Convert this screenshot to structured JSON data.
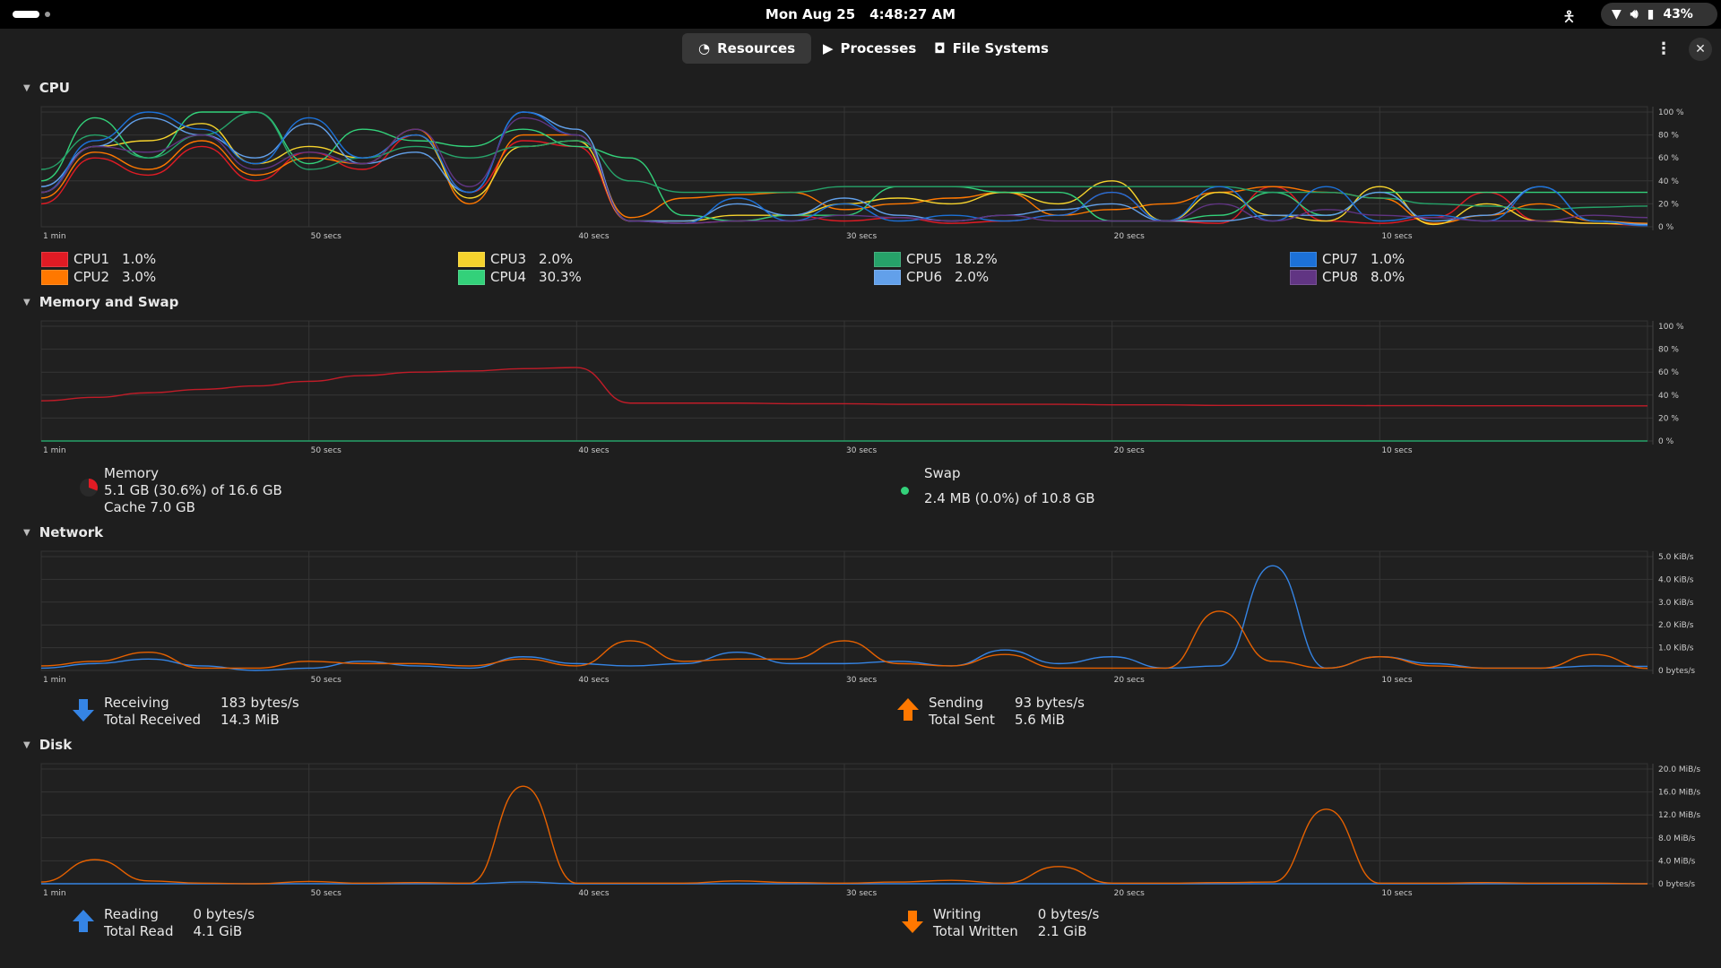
{
  "topbar": {
    "date": "Mon Aug 25",
    "time": "4:48:27 AM",
    "battery": "43%"
  },
  "tabs": [
    {
      "label": "Resources",
      "icon": "gauge-icon",
      "active": true
    },
    {
      "label": "Processes",
      "icon": "play-icon"
    },
    {
      "label": "File Systems",
      "icon": "disk-icon"
    }
  ],
  "x_labels": [
    "1 min",
    "50 secs",
    "40 secs",
    "30 secs",
    "20 secs",
    "10 secs"
  ],
  "x_label_secs": [
    60,
    50,
    40,
    30,
    20,
    10
  ],
  "sections": {
    "cpu": "CPU",
    "memory": "Memory and Swap",
    "network": "Network",
    "disk": "Disk"
  },
  "cpu_legend": [
    {
      "name": "CPU1",
      "value": "1.0%",
      "color": "#e01b24"
    },
    {
      "name": "CPU2",
      "value": "3.0%",
      "color": "#ff7800"
    },
    {
      "name": "CPU3",
      "value": "2.0%",
      "color": "#f6d32d"
    },
    {
      "name": "CPU4",
      "value": "30.3%",
      "color": "#33d17a"
    },
    {
      "name": "CPU5",
      "value": "18.2%",
      "color": "#26a269"
    },
    {
      "name": "CPU6",
      "value": "2.0%",
      "color": "#62a0ea"
    },
    {
      "name": "CPU7",
      "value": "1.0%",
      "color": "#1c71d8"
    },
    {
      "name": "CPU8",
      "value": "8.0%",
      "color": "#613583"
    }
  ],
  "memory": {
    "label": "Memory",
    "usage": "5.1 GB (30.6%) of 16.6 GB",
    "cache": "Cache 7.0 GB",
    "fraction": 0.306,
    "color": "#e01b24"
  },
  "swap": {
    "label": "Swap",
    "usage": "2.4 MB (0.0%) of 10.8 GB",
    "color": "#33d17a"
  },
  "network": {
    "receiving_label": "Receiving",
    "receiving": "183 bytes/s",
    "total_received_label": "Total Received",
    "total_received": "14.3 MiB",
    "sending_label": "Sending",
    "sending": "93 bytes/s",
    "total_sent_label": "Total Sent",
    "total_sent": "5.6 MiB"
  },
  "disk": {
    "reading_label": "Reading",
    "reading": "0 bytes/s",
    "total_read_label": "Total Read",
    "total_read": "4.1 GiB",
    "writing_label": "Writing",
    "writing": "0 bytes/s",
    "total_written_label": "Total Written",
    "total_written": "2.1 GiB"
  },
  "chart_data": [
    {
      "type": "line",
      "id": "cpu",
      "x_seconds_ago_step": 2,
      "ylim": [
        0,
        100
      ],
      "y_ticks": [
        "100 %",
        "80 %",
        "60 %",
        "40 %",
        "20 %",
        "0 %"
      ],
      "y_tick_values": [
        100,
        80,
        60,
        40,
        20,
        0
      ],
      "series": [
        {
          "name": "CPU1",
          "color": "#e01b24",
          "values": [
            20,
            60,
            45,
            70,
            40,
            65,
            50,
            80,
            30,
            75,
            70,
            5,
            3,
            5,
            10,
            5,
            8,
            3,
            5,
            10,
            30,
            5,
            3,
            35,
            5,
            3,
            8,
            30,
            5,
            3,
            1
          ]
        },
        {
          "name": "CPU2",
          "color": "#ff7800",
          "values": [
            25,
            65,
            50,
            75,
            45,
            60,
            55,
            85,
            20,
            80,
            80,
            8,
            25,
            28,
            30,
            15,
            20,
            25,
            30,
            10,
            15,
            20,
            30,
            35,
            30,
            25,
            3,
            10,
            20,
            5,
            3
          ]
        },
        {
          "name": "CPU3",
          "color": "#f6d32d",
          "values": [
            30,
            70,
            75,
            90,
            55,
            70,
            60,
            80,
            25,
            70,
            75,
            5,
            5,
            10,
            10,
            20,
            25,
            20,
            30,
            20,
            40,
            5,
            30,
            10,
            5,
            35,
            2,
            20,
            5,
            3,
            2
          ]
        },
        {
          "name": "CPU4",
          "color": "#33d17a",
          "values": [
            40,
            95,
            60,
            100,
            100,
            55,
            85,
            75,
            70,
            85,
            70,
            60,
            10,
            5,
            10,
            10,
            35,
            35,
            30,
            30,
            5,
            5,
            10,
            30,
            10,
            30,
            30,
            30,
            30,
            30,
            30
          ]
        },
        {
          "name": "CPU5",
          "color": "#26a269",
          "values": [
            50,
            80,
            60,
            80,
            100,
            50,
            60,
            70,
            60,
            70,
            75,
            40,
            30,
            30,
            30,
            35,
            35,
            35,
            35,
            35,
            35,
            35,
            35,
            30,
            30,
            25,
            20,
            18,
            15,
            17,
            18
          ]
        },
        {
          "name": "CPU6",
          "color": "#62a0ea",
          "values": [
            35,
            70,
            95,
            80,
            60,
            90,
            55,
            65,
            30,
            100,
            85,
            5,
            5,
            20,
            10,
            25,
            10,
            5,
            10,
            15,
            20,
            5,
            5,
            10,
            10,
            30,
            5,
            10,
            35,
            5,
            2
          ]
        },
        {
          "name": "CPU7",
          "color": "#1c71d8",
          "values": [
            30,
            75,
            100,
            85,
            55,
            95,
            60,
            80,
            30,
            100,
            80,
            5,
            3,
            25,
            5,
            20,
            5,
            10,
            5,
            10,
            30,
            5,
            35,
            5,
            35,
            5,
            10,
            5,
            35,
            5,
            1
          ]
        },
        {
          "name": "CPU8",
          "color": "#613583",
          "values": [
            30,
            70,
            65,
            80,
            50,
            65,
            55,
            85,
            35,
            95,
            80,
            5,
            3,
            5,
            5,
            10,
            8,
            5,
            10,
            5,
            5,
            5,
            20,
            5,
            15,
            10,
            8,
            5,
            5,
            10,
            8
          ]
        }
      ]
    },
    {
      "type": "line",
      "id": "memory",
      "x_seconds_ago_step": 2,
      "ylim": [
        0,
        100
      ],
      "y_ticks": [
        "100 %",
        "80 %",
        "60 %",
        "40 %",
        "20 %",
        "0 %"
      ],
      "y_tick_values": [
        100,
        80,
        60,
        40,
        20,
        0
      ],
      "series": [
        {
          "name": "Memory",
          "color": "#c01c28",
          "values": [
            35,
            38,
            42,
            45,
            48,
            52,
            57,
            60,
            61,
            63,
            64,
            33,
            33,
            33,
            32.5,
            32.5,
            32,
            32,
            32,
            32,
            31.5,
            31.5,
            31,
            31,
            31,
            30.8,
            30.8,
            30.7,
            30.7,
            30.6,
            30.6
          ]
        },
        {
          "name": "Swap",
          "color": "#26a269",
          "values": [
            0,
            0,
            0,
            0,
            0,
            0,
            0,
            0,
            0,
            0,
            0,
            0,
            0,
            0,
            0,
            0,
            0,
            0,
            0,
            0,
            0,
            0,
            0,
            0,
            0,
            0,
            0,
            0,
            0,
            0,
            0
          ]
        }
      ]
    },
    {
      "type": "line",
      "id": "network",
      "x_seconds_ago_step": 2,
      "ylim": [
        0,
        5
      ],
      "y_ticks": [
        "5.0 KiB/s",
        "4.0 KiB/s",
        "3.0 KiB/s",
        "2.0 KiB/s",
        "1.0 KiB/s",
        "0 bytes/s"
      ],
      "y_tick_values": [
        5,
        4,
        3,
        2,
        1,
        0
      ],
      "series": [
        {
          "name": "Receiving",
          "color": "#3584e4",
          "values": [
            0.1,
            0.3,
            0.5,
            0.2,
            0,
            0.1,
            0.4,
            0.2,
            0.1,
            0.6,
            0.3,
            0.2,
            0.3,
            0.8,
            0.3,
            0.3,
            0.4,
            0.2,
            0.9,
            0.3,
            0.6,
            0.1,
            0.2,
            4.6,
            0.1,
            0.6,
            0.3,
            0.1,
            0.1,
            0.2,
            0.18
          ]
        },
        {
          "name": "Sending",
          "color": "#e66100",
          "values": [
            0.2,
            0.4,
            0.8,
            0.1,
            0.1,
            0.4,
            0.3,
            0.3,
            0.2,
            0.5,
            0.2,
            1.3,
            0.4,
            0.5,
            0.5,
            1.3,
            0.3,
            0.2,
            0.7,
            0.1,
            0.1,
            0.1,
            2.6,
            0.4,
            0.1,
            0.6,
            0.2,
            0.1,
            0.1,
            0.7,
            0.09
          ]
        }
      ]
    },
    {
      "type": "line",
      "id": "disk",
      "x_seconds_ago_step": 2,
      "ylim": [
        0,
        20
      ],
      "y_ticks": [
        "20.0 MiB/s",
        "16.0 MiB/s",
        "12.0 MiB/s",
        "8.0 MiB/s",
        "4.0 MiB/s",
        "0 bytes/s"
      ],
      "y_tick_values": [
        20,
        16,
        12,
        8,
        4,
        0
      ],
      "series": [
        {
          "name": "Reading",
          "color": "#3584e4",
          "values": [
            0,
            0,
            0,
            0,
            0,
            0,
            0,
            0,
            0,
            0.3,
            0,
            0,
            0,
            0,
            0,
            0,
            0,
            0,
            0,
            0,
            0,
            0,
            0,
            0,
            0,
            0,
            0,
            0,
            0,
            0,
            0
          ]
        },
        {
          "name": "Writing",
          "color": "#e66100",
          "values": [
            0.3,
            4.2,
            0.5,
            0.1,
            0,
            0.4,
            0.1,
            0.2,
            0.1,
            17,
            0.1,
            0.1,
            0.1,
            0.5,
            0.2,
            0.1,
            0.3,
            0.6,
            0.1,
            3,
            0.1,
            0.1,
            0.2,
            0.3,
            13,
            0.1,
            0.1,
            0.2,
            0.1,
            0.1,
            0
          ]
        }
      ]
    }
  ]
}
